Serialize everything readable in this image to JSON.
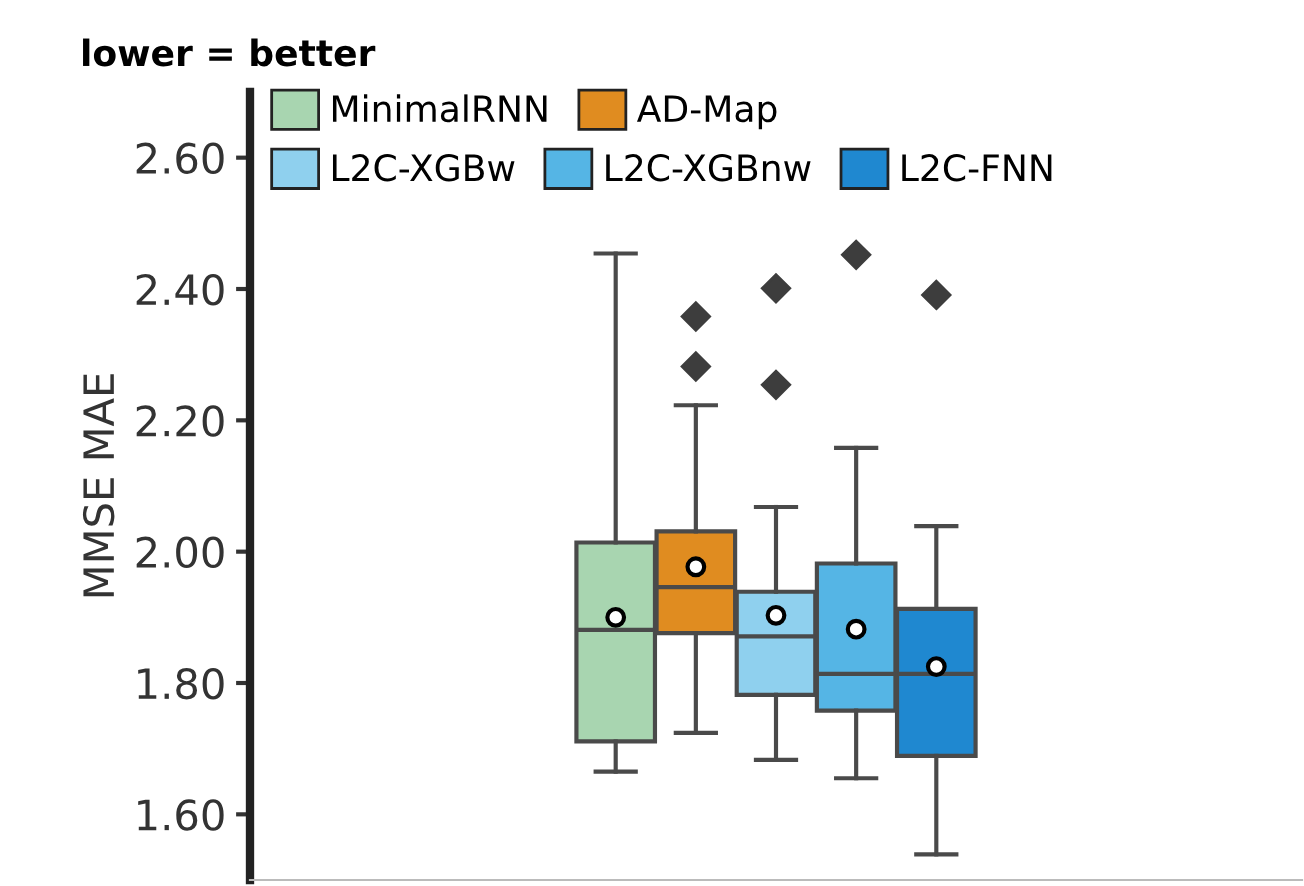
{
  "chart_data": {
    "type": "box",
    "title": "lower = better",
    "ylabel": "MMSE MAE",
    "categories": [
      null
    ],
    "series": [
      {
        "name": "MinimalRNN",
        "color": "#a8d5b0",
        "boxes": [
          {
            "low": 1.665,
            "q1": 1.711,
            "median": 1.881,
            "q3": 2.014,
            "high": 2.454,
            "mean": 1.9
          }
        ]
      },
      {
        "name": "AD-Map",
        "color": "#e08c20",
        "boxes": [
          {
            "low": 1.724,
            "q1": 1.876,
            "median": 1.946,
            "q3": 2.031,
            "high": 2.223,
            "mean": 1.977,
            "outliers": [
              2.358,
              2.282
            ]
          }
        ]
      },
      {
        "name": "L2C-XGBw",
        "color": "#8fd0ee",
        "boxes": [
          {
            "low": 1.683,
            "q1": 1.782,
            "median": 1.871,
            "q3": 1.939,
            "high": 2.068,
            "mean": 1.903,
            "outliers": [
              2.401,
              2.254
            ]
          }
        ]
      },
      {
        "name": "L2C-XGBnw",
        "color": "#55b5e5",
        "boxes": [
          {
            "low": 1.655,
            "q1": 1.758,
            "median": 1.814,
            "q3": 1.982,
            "high": 2.158,
            "mean": 1.882,
            "outliers": [
              2.452
            ]
          }
        ]
      },
      {
        "name": "L2C-FNN",
        "color": "#1f88d0",
        "boxes": [
          {
            "low": 1.539,
            "q1": 1.689,
            "median": 1.814,
            "q3": 1.913,
            "high": 2.039,
            "mean": 1.825,
            "outliers": [
              2.391
            ]
          }
        ]
      }
    ],
    "ylim": [
      1.5,
      2.7
    ],
    "yticks": [
      {
        "value": 1.6,
        "label": "1.60"
      },
      {
        "value": 1.8,
        "label": "1.80"
      },
      {
        "value": 2.0,
        "label": "2.00"
      },
      {
        "value": 2.2,
        "label": "2.20"
      },
      {
        "value": 2.4,
        "label": "2.40"
      },
      {
        "value": 2.6,
        "label": "2.60"
      }
    ],
    "tick_labels": "y",
    "grid": false,
    "legend": "top left"
  }
}
